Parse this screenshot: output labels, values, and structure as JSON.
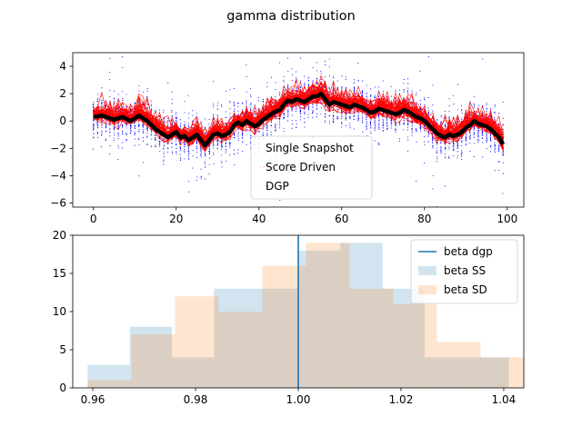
{
  "figure": {
    "suptitle": "gamma distribution"
  },
  "chart_data": [
    {
      "type": "scatter",
      "title": "",
      "xlabel": "",
      "ylabel": "",
      "xlim": [
        -5,
        104
      ],
      "ylim": [
        -6.3,
        5.0
      ],
      "xticks": [
        0,
        20,
        40,
        60,
        80,
        100
      ],
      "yticks": [
        -6,
        -4,
        -2,
        0,
        2,
        4
      ],
      "grid": false,
      "legend_loc": "lower-center",
      "series": [
        {
          "name": "Single Snapshot",
          "kind": "points",
          "color": "#ffffff"
        },
        {
          "name": "Score Driven",
          "kind": "lines",
          "color": "#ff0000",
          "n_paths": 60
        },
        {
          "name": "DGP",
          "kind": "scatter",
          "color": "#0000ff"
        }
      ],
      "dgp_mean": [
        0.3,
        0.35,
        0.4,
        0.3,
        0.2,
        0.1,
        0.2,
        0.3,
        0.15,
        0.0,
        0.2,
        0.4,
        0.2,
        0.0,
        -0.3,
        -0.6,
        -0.8,
        -1.0,
        -1.2,
        -1.0,
        -0.8,
        -1.2,
        -1.1,
        -1.4,
        -1.2,
        -1.0,
        -1.4,
        -1.8,
        -1.4,
        -1.0,
        -0.9,
        -1.1,
        -1.0,
        -0.8,
        -0.3,
        -0.1,
        -0.3,
        0.0,
        -0.2,
        -0.4,
        -0.2,
        0.1,
        0.3,
        0.5,
        0.7,
        0.8,
        1.2,
        1.5,
        1.4,
        1.6,
        1.5,
        1.4,
        1.6,
        1.8,
        1.8,
        2.0,
        1.6,
        1.2,
        1.4,
        1.3,
        1.2,
        1.1,
        1.0,
        1.2,
        1.1,
        1.0,
        0.8,
        0.6,
        0.7,
        0.9,
        0.8,
        0.7,
        0.6,
        0.5,
        0.6,
        0.8,
        0.7,
        0.5,
        0.3,
        0.2,
        0.0,
        -0.3,
        -0.6,
        -0.9,
        -1.1,
        -1.2,
        -1.0,
        -1.1,
        -1.0,
        -0.8,
        -0.5,
        -0.3,
        0.0,
        -0.2,
        -0.3,
        -0.4,
        -0.6,
        -0.9,
        -1.2,
        -1.7
      ]
    },
    {
      "type": "histogram",
      "title": "",
      "xlabel": "",
      "ylabel": "",
      "xlim": [
        0.9561,
        1.0439
      ],
      "ylim": [
        0,
        20
      ],
      "xticks": [
        0.96,
        0.98,
        1.0,
        1.02,
        1.04
      ],
      "xtick_labels": [
        "0.96",
        "0.98",
        "1.00",
        "1.02",
        "1.04"
      ],
      "yticks": [
        0,
        5,
        10,
        15,
        20
      ],
      "grid": false,
      "legend_loc": "upper-right",
      "vline": {
        "name": "beta dgp",
        "x": 1.0,
        "color": "#1f77b4"
      },
      "series": [
        {
          "name": "beta SS",
          "color": "#1f77b4",
          "alpha": 0.2,
          "bin_edges": [
            0.959,
            0.9672,
            0.9754,
            0.9836,
            0.9918,
            1.0,
            1.0082,
            1.0164,
            1.0246,
            1.0328,
            1.041
          ],
          "counts": [
            3,
            8,
            4,
            13,
            13,
            18,
            19,
            13,
            4,
            4
          ]
        },
        {
          "name": "beta SD",
          "color": "#ff7f0e",
          "alpha": 0.2,
          "bin_edges": [
            0.959,
            0.9675,
            0.976,
            0.9845,
            0.993,
            1.0015,
            1.01,
            1.0185,
            1.027,
            1.0355,
            1.044
          ],
          "counts": [
            1,
            7,
            12,
            10,
            16,
            19,
            13,
            11,
            6,
            4
          ]
        }
      ]
    }
  ]
}
